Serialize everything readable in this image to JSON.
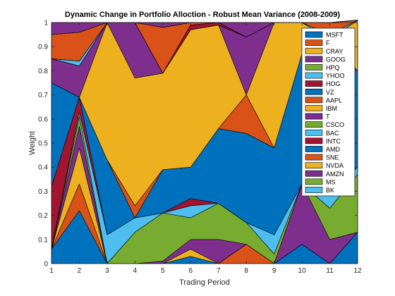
{
  "chart_data": {
    "type": "area",
    "title": "Dynamic Change in Portfolio Alloction - Robust Mean Variance (2008-2009)",
    "xlabel": "Trading Period",
    "ylabel": "Weight",
    "xlim": [
      1,
      12
    ],
    "ylim": [
      0,
      1
    ],
    "x": [
      1,
      2,
      3,
      4,
      5,
      6,
      7,
      8,
      9,
      10,
      11,
      12
    ],
    "xticks": [
      "1",
      "2",
      "3",
      "4",
      "5",
      "6",
      "7",
      "8",
      "9",
      "10",
      "11",
      "12"
    ],
    "yticks": [
      "0",
      "0.1",
      "0.2",
      "0.3",
      "0.4",
      "0.5",
      "0.6",
      "0.7",
      "0.8",
      "0.9",
      "1"
    ],
    "stacked": true,
    "grid": false,
    "legend_position": "top-right",
    "series": [
      {
        "name": "MSFT",
        "color": "#0072BD",
        "values": [
          0.06,
          0.22,
          0.0,
          0.0,
          0.0,
          0.03,
          0.0,
          0.0,
          0.0,
          0.08,
          0.0,
          0.13
        ]
      },
      {
        "name": "F",
        "color": "#D95319",
        "values": [
          0.0,
          0.11,
          0.0,
          0.0,
          0.0,
          0.0,
          0.0,
          0.08,
          0.0,
          0.0,
          0.0,
          0.0
        ]
      },
      {
        "name": "CRAY",
        "color": "#EDB120",
        "values": [
          0.0,
          0.15,
          0.0,
          0.0,
          0.0,
          0.03,
          0.0,
          0.0,
          0.0,
          0.0,
          0.0,
          0.0
        ]
      },
      {
        "name": "GOOG",
        "color": "#7E2F8E",
        "values": [
          0.0,
          0.09,
          0.0,
          0.0,
          0.01,
          0.04,
          0.1,
          0.0,
          0.0,
          0.25,
          0.1,
          0.0
        ]
      },
      {
        "name": "HPQ",
        "color": "#77AC30",
        "values": [
          0.0,
          0.04,
          0.0,
          0.13,
          0.2,
          0.09,
          0.15,
          0.09,
          0.04,
          0.0,
          0.13,
          0.24
        ]
      },
      {
        "name": "YHOO",
        "color": "#4DBEEE",
        "values": [
          0.0,
          0.02,
          0.12,
          0.06,
          0.0,
          0.05,
          0.0,
          0.0,
          0.08,
          0.0,
          0.06,
          0.03
        ]
      },
      {
        "name": "HOG",
        "color": "#A2142F",
        "values": [
          0.26,
          0.06,
          0.0,
          0.0,
          0.0,
          0.03,
          0.0,
          0.0,
          0.0,
          0.0,
          0.0,
          0.0
        ]
      },
      {
        "name": "VZ",
        "color": "#0072BD",
        "values": [
          0.43,
          0.0,
          0.31,
          0.0,
          0.18,
          0.13,
          0.31,
          0.37,
          0.36,
          0.54,
          0.64,
          0.4
        ]
      },
      {
        "name": "AAPL",
        "color": "#D95319",
        "values": [
          0.0,
          0.0,
          0.0,
          0.05,
          0.0,
          0.0,
          0.0,
          0.16,
          0.0,
          0.0,
          0.0,
          0.0
        ]
      },
      {
        "name": "IBM",
        "color": "#EDB120",
        "values": [
          0.0,
          0.0,
          0.57,
          0.53,
          0.4,
          0.57,
          0.43,
          0.0,
          0.52,
          0.13,
          0.0,
          0.21
        ]
      },
      {
        "name": "T",
        "color": "#7E2F8E",
        "values": [
          0.1,
          0.13,
          0.0,
          0.23,
          0.0,
          0.0,
          0.0,
          0.24,
          0.0,
          0.0,
          0.0,
          0.0
        ]
      },
      {
        "name": "CSCO",
        "color": "#77AC30",
        "values": [
          0.0,
          0.0,
          0.0,
          0.0,
          0.0,
          0.0,
          0.0,
          0.0,
          0.0,
          0.0,
          0.0,
          0.0
        ]
      },
      {
        "name": "BAC",
        "color": "#4DBEEE",
        "values": [
          0.0,
          0.02,
          0.0,
          0.0,
          0.0,
          0.0,
          0.0,
          0.0,
          0.0,
          0.0,
          0.02,
          0.0
        ]
      },
      {
        "name": "INTC",
        "color": "#A2142F",
        "values": [
          0.0,
          0.0,
          0.0,
          0.0,
          0.0,
          0.02,
          0.01,
          0.0,
          0.0,
          0.0,
          0.0,
          0.0
        ]
      },
      {
        "name": "AMD",
        "color": "#0072BD",
        "values": [
          0.0,
          0.0,
          0.0,
          0.0,
          0.0,
          0.0,
          0.0,
          0.0,
          0.0,
          0.0,
          0.0,
          0.0
        ]
      },
      {
        "name": "SNE",
        "color": "#D95319",
        "values": [
          0.1,
          0.12,
          0.0,
          0.0,
          0.19,
          0.01,
          0.0,
          0.0,
          0.0,
          0.0,
          0.05,
          0.0
        ]
      },
      {
        "name": "NVDA",
        "color": "#EDB120",
        "values": [
          0.0,
          0.0,
          0.0,
          0.0,
          0.0,
          0.0,
          0.0,
          0.0,
          0.0,
          0.0,
          0.0,
          0.0
        ]
      },
      {
        "name": "AMZN",
        "color": "#7E2F8E",
        "values": [
          0.05,
          0.04,
          0.0,
          0.0,
          0.02,
          0.0,
          0.0,
          0.06,
          0.0,
          0.0,
          0.0,
          0.0
        ]
      },
      {
        "name": "MS",
        "color": "#77AC30",
        "values": [
          0.0,
          0.0,
          0.0,
          0.0,
          0.0,
          0.0,
          0.0,
          0.0,
          0.0,
          0.0,
          0.0,
          0.0
        ]
      },
      {
        "name": "BK",
        "color": "#4DBEEE",
        "values": [
          0.0,
          0.0,
          0.0,
          0.0,
          0.0,
          0.0,
          0.0,
          0.0,
          0.0,
          0.0,
          0.0,
          0.0
        ]
      }
    ]
  }
}
